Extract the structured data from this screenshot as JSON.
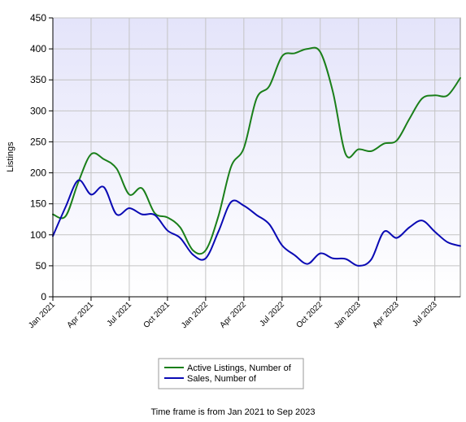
{
  "chart_data": {
    "type": "line",
    "title": "",
    "xlabel": "",
    "ylabel": "Listings",
    "ylim": [
      0,
      450
    ],
    "yticks": [
      0,
      50,
      100,
      150,
      200,
      250,
      300,
      350,
      400,
      450
    ],
    "x_tick_labels": [
      "Jan 2021",
      "Apr 2021",
      "Jul 2021",
      "Oct 2021",
      "Jan 2022",
      "Apr 2022",
      "Jul 2022",
      "Oct 2022",
      "Jan 2023",
      "Apr 2023",
      "Jul 2023"
    ],
    "x": [
      "Jan 2021",
      "Feb 2021",
      "Mar 2021",
      "Apr 2021",
      "May 2021",
      "Jun 2021",
      "Jul 2021",
      "Aug 2021",
      "Sep 2021",
      "Oct 2021",
      "Nov 2021",
      "Dec 2021",
      "Jan 2022",
      "Feb 2022",
      "Mar 2022",
      "Apr 2022",
      "May 2022",
      "Jun 2022",
      "Jul 2022",
      "Aug 2022",
      "Sep 2022",
      "Oct 2022",
      "Nov 2022",
      "Dec 2022",
      "Jan 2023",
      "Feb 2023",
      "Mar 2023",
      "Apr 2023",
      "May 2023",
      "Jun 2023",
      "Jul 2023",
      "Aug 2023",
      "Sep 2023"
    ],
    "grid": true,
    "legend_position": "bottom",
    "series": [
      {
        "name": "Active Listings, Number of",
        "color": "#1a7f1a",
        "values": [
          133,
          130,
          185,
          230,
          222,
          207,
          165,
          175,
          135,
          128,
          112,
          75,
          75,
          130,
          210,
          240,
          320,
          340,
          388,
          393,
          400,
          395,
          330,
          230,
          238,
          235,
          247,
          252,
          287,
          320,
          325,
          325,
          353
        ]
      },
      {
        "name": "Sales, Number of",
        "color": "#0a0ab4",
        "values": [
          98,
          145,
          188,
          165,
          177,
          133,
          143,
          133,
          132,
          107,
          95,
          68,
          62,
          105,
          153,
          147,
          132,
          117,
          83,
          67,
          53,
          70,
          62,
          61,
          50,
          60,
          105,
          95,
          112,
          123,
          105,
          88,
          82
        ]
      }
    ]
  },
  "footer": "Time frame is from Jan 2021 to Sep 2023"
}
